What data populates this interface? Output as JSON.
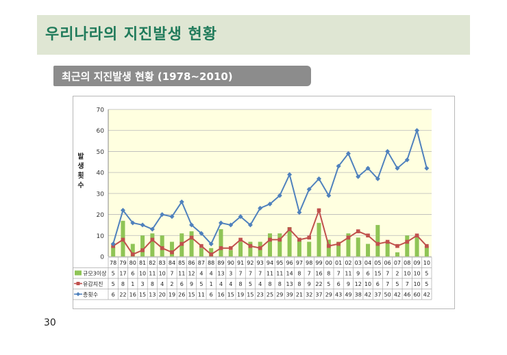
{
  "slide": {
    "title": "우리나라의 지진발생 현황",
    "subtitle": "최근의 지진발생 현황 (1978~2010)",
    "page_number": "30"
  },
  "colors": {
    "title_text": "#1f7a5a",
    "bar": "#8fc456",
    "line_quake_felt": "#c0504d",
    "line_total": "#4f81bd",
    "plot_bg": "#ffffe0"
  },
  "chart_data": {
    "type": "bar+line",
    "ylabel": "발생횟수",
    "ylim": [
      0,
      70
    ],
    "yticks": [
      0,
      10,
      20,
      30,
      40,
      50,
      60,
      70
    ],
    "grid": true,
    "categories": [
      "78",
      "79",
      "80",
      "81",
      "82",
      "83",
      "84",
      "85",
      "86",
      "87",
      "88",
      "89",
      "90",
      "91",
      "92",
      "93",
      "94",
      "95",
      "96",
      "97",
      "98",
      "99",
      "00",
      "01",
      "02",
      "03",
      "04",
      "05",
      "06",
      "07",
      "08",
      "09",
      "10"
    ],
    "series": [
      {
        "name": "규모3이상",
        "kind": "bar",
        "marker": "square",
        "values": [
          5,
          17,
          6,
          10,
          11,
          10,
          7,
          11,
          12,
          4,
          4,
          13,
          3,
          7,
          7,
          7,
          11,
          11,
          14,
          8,
          7,
          16,
          8,
          7,
          11,
          9,
          6,
          15,
          7,
          2,
          10,
          10,
          5
        ]
      },
      {
        "name": "유감지진",
        "kind": "line",
        "marker": "square",
        "values": [
          5,
          8,
          1,
          3,
          8,
          4,
          2,
          6,
          9,
          5,
          1,
          4,
          4,
          8,
          5,
          4,
          8,
          8,
          13,
          8,
          9,
          22,
          5,
          6,
          9,
          12,
          10,
          6,
          7,
          5,
          7,
          10,
          5
        ]
      },
      {
        "name": "총횟수",
        "kind": "line",
        "marker": "diamond",
        "values": [
          6,
          22,
          16,
          15,
          13,
          20,
          19,
          26,
          15,
          11,
          6,
          16,
          15,
          19,
          15,
          23,
          25,
          29,
          39,
          21,
          32,
          37,
          29,
          43,
          49,
          38,
          42,
          37,
          50,
          42,
          46,
          60,
          42
        ]
      }
    ]
  }
}
